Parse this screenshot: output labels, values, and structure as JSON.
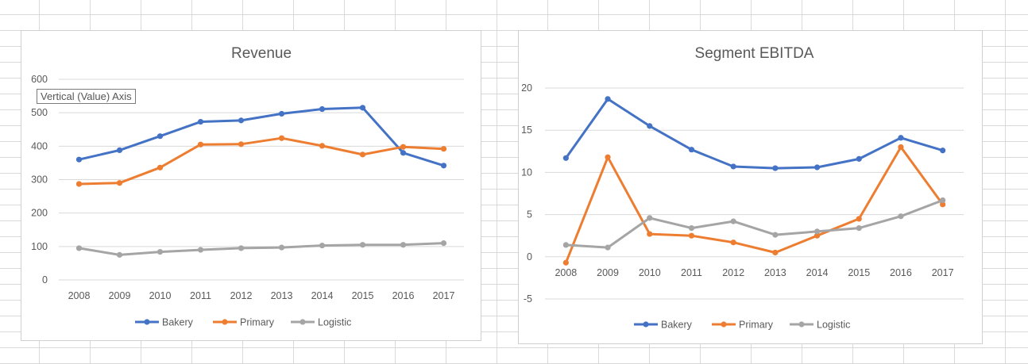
{
  "chart_data": [
    {
      "type": "line",
      "title": "Revenue",
      "categories": [
        "2008",
        "2009",
        "2010",
        "2011",
        "2012",
        "2013",
        "2014",
        "2015",
        "2016",
        "2017"
      ],
      "ylim": [
        0,
        600
      ],
      "yticks": [
        0,
        100,
        200,
        300,
        400,
        500,
        600
      ],
      "grid": true,
      "legend_position": "bottom",
      "series": [
        {
          "name": "Bakery",
          "color": "#4472c4",
          "values": [
            360,
            388,
            430,
            473,
            477,
            497,
            511,
            515,
            380,
            342
          ]
        },
        {
          "name": "Primary",
          "color": "#ed7d31",
          "values": [
            287,
            290,
            336,
            405,
            406,
            424,
            401,
            375,
            398,
            392
          ]
        },
        {
          "name": "Logistic",
          "color": "#a5a5a5",
          "values": [
            95,
            75,
            84,
            90,
            95,
            97,
            103,
            105,
            105,
            110
          ]
        }
      ]
    },
    {
      "type": "line",
      "title": "Segment EBITDA",
      "categories": [
        "2008",
        "2009",
        "2010",
        "2011",
        "2012",
        "2013",
        "2014",
        "2015",
        "2016",
        "2017"
      ],
      "ylim": [
        -5,
        20
      ],
      "yticks": [
        -5,
        0,
        5,
        10,
        15,
        20
      ],
      "grid": true,
      "legend_position": "bottom",
      "series": [
        {
          "name": "Bakery",
          "color": "#4472c4",
          "values": [
            11.7,
            18.7,
            15.5,
            12.7,
            10.7,
            10.5,
            10.6,
            11.6,
            14.1,
            12.6
          ]
        },
        {
          "name": "Primary",
          "color": "#ed7d31",
          "values": [
            -0.7,
            11.8,
            2.7,
            2.5,
            1.7,
            0.5,
            2.5,
            4.5,
            13.0,
            6.2
          ]
        },
        {
          "name": "Logistic",
          "color": "#a5a5a5",
          "values": [
            1.4,
            1.1,
            4.6,
            3.4,
            4.2,
            2.6,
            3.0,
            3.4,
            4.8,
            6.7
          ]
        }
      ]
    }
  ],
  "tooltip": {
    "text": "Vertical (Value) Axis"
  }
}
